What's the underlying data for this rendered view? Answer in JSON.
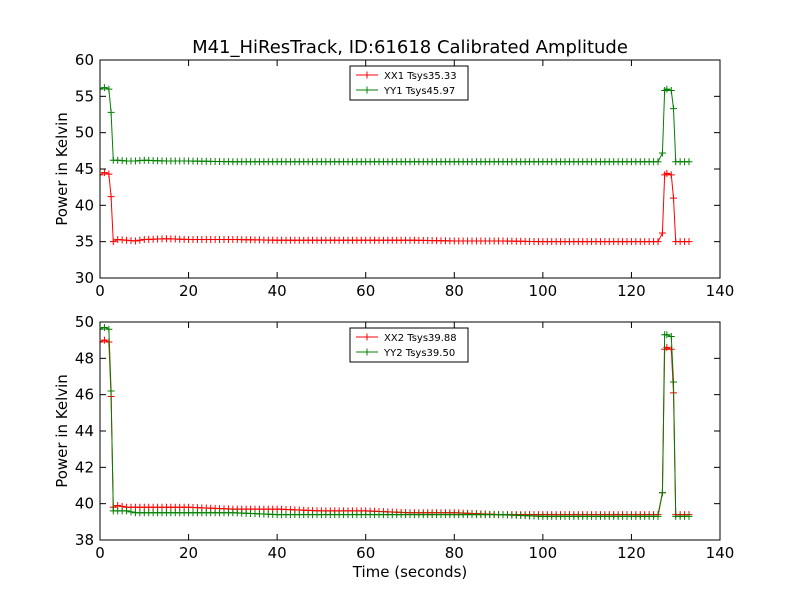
{
  "title": "M41_HiResTrack, ID:61618 Calibrated Amplitude",
  "chart_data": [
    {
      "type": "line",
      "ylabel": "Power in Kelvin",
      "xlabel": "",
      "xlim": [
        0,
        140
      ],
      "ylim": [
        30,
        60
      ],
      "xticks": [
        0,
        20,
        40,
        60,
        80,
        100,
        120,
        140
      ],
      "yticks": [
        30,
        35,
        40,
        45,
        50,
        55,
        60
      ],
      "grid": false,
      "legend_position": "top-center",
      "marker": "+",
      "series": [
        {
          "name": "XX1 Tsys35.33",
          "color": "#ff0000",
          "x": [
            0,
            1,
            2,
            2.5,
            3,
            4,
            6,
            8,
            10,
            15,
            20,
            30,
            40,
            50,
            60,
            70,
            80,
            90,
            100,
            110,
            120,
            126,
            127,
            127.5,
            128,
            129,
            129.5,
            130,
            131,
            132,
            133
          ],
          "y": [
            44.2,
            44.5,
            44.3,
            41.2,
            35.0,
            35.3,
            35.2,
            35.1,
            35.3,
            35.4,
            35.3,
            35.3,
            35.2,
            35.2,
            35.2,
            35.2,
            35.1,
            35.1,
            35.0,
            35.0,
            35.0,
            35.0,
            36.2,
            44.2,
            44.4,
            44.2,
            41.0,
            35.0,
            35.0,
            35.0,
            35.0
          ]
        },
        {
          "name": "YY1 Tsys45.97",
          "color": "#008000",
          "x": [
            0,
            1,
            2,
            2.5,
            3,
            4,
            6,
            8,
            10,
            15,
            20,
            30,
            40,
            50,
            60,
            70,
            80,
            90,
            100,
            110,
            120,
            126,
            127,
            127.5,
            128,
            129,
            129.5,
            130,
            131,
            132,
            133
          ],
          "y": [
            56.0,
            56.2,
            56.0,
            52.8,
            46.2,
            46.2,
            46.1,
            46.1,
            46.2,
            46.1,
            46.1,
            46.0,
            46.0,
            46.0,
            46.0,
            46.0,
            46.0,
            46.0,
            46.0,
            46.0,
            46.0,
            46.0,
            47.2,
            55.8,
            56.0,
            55.8,
            53.3,
            46.0,
            46.0,
            46.0,
            46.0
          ]
        }
      ]
    },
    {
      "type": "line",
      "ylabel": "Power in Kelvin",
      "xlabel": "Time (seconds)",
      "xlim": [
        0,
        140
      ],
      "ylim": [
        38,
        50
      ],
      "xticks": [
        0,
        20,
        40,
        60,
        80,
        100,
        120,
        140
      ],
      "yticks": [
        38,
        40,
        42,
        44,
        46,
        48,
        50
      ],
      "grid": false,
      "legend_position": "top-center",
      "marker": "+",
      "series": [
        {
          "name": "XX2 Tsys39.88",
          "color": "#ff0000",
          "x": [
            0,
            1,
            2,
            2.5,
            3,
            4,
            6,
            8,
            10,
            15,
            20,
            30,
            40,
            50,
            60,
            70,
            80,
            90,
            100,
            110,
            120,
            126,
            127,
            127.5,
            128,
            129,
            129.5,
            130,
            131,
            132,
            133
          ],
          "y": [
            48.9,
            49.0,
            48.9,
            45.9,
            39.8,
            39.9,
            39.8,
            39.8,
            39.8,
            39.8,
            39.8,
            39.7,
            39.7,
            39.6,
            39.6,
            39.5,
            39.5,
            39.4,
            39.4,
            39.4,
            39.4,
            39.4,
            40.6,
            48.5,
            48.6,
            48.5,
            46.1,
            39.4,
            39.4,
            39.4,
            39.4
          ]
        },
        {
          "name": "YY2 Tsys39.50",
          "color": "#008000",
          "x": [
            0,
            1,
            2,
            2.5,
            3,
            4,
            6,
            8,
            10,
            15,
            20,
            30,
            40,
            50,
            60,
            70,
            80,
            90,
            100,
            110,
            120,
            126,
            127,
            127.5,
            128,
            129,
            129.5,
            130,
            131,
            132,
            133
          ],
          "y": [
            49.6,
            49.7,
            49.6,
            46.2,
            39.6,
            39.6,
            39.6,
            39.5,
            39.5,
            39.5,
            39.5,
            39.5,
            39.4,
            39.4,
            39.4,
            39.4,
            39.4,
            39.4,
            39.3,
            39.3,
            39.3,
            39.3,
            40.6,
            49.3,
            49.3,
            49.2,
            46.7,
            39.3,
            39.3,
            39.3,
            39.3
          ]
        }
      ]
    }
  ]
}
